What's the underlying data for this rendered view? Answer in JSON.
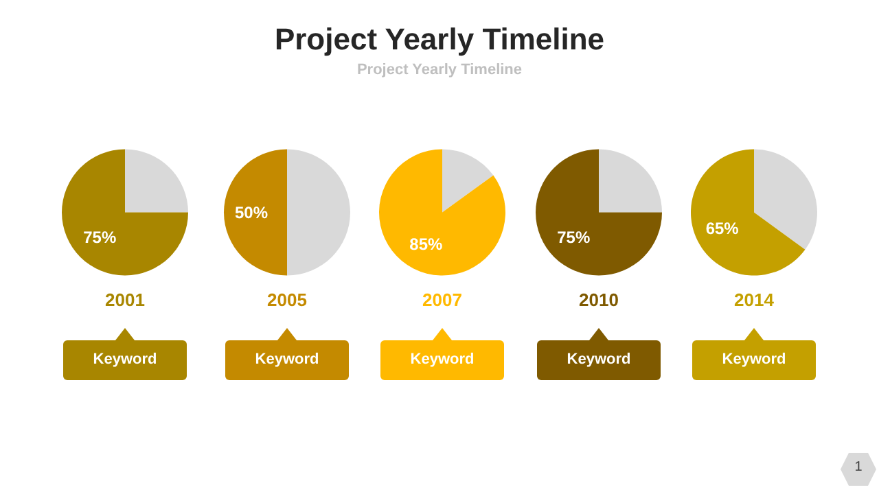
{
  "chart_data": [
    {
      "type": "other",
      "title": "Project Yearly Timeline",
      "subtitle": "Project Yearly Timeline",
      "annotations": [
        "1"
      ]
    },
    {
      "type": "pie",
      "xlabel": "2001",
      "categories": [
        null,
        null
      ],
      "values": [
        25,
        75
      ],
      "colors": [
        "#d9d9d9",
        "#a88600"
      ],
      "value_labels": [
        null,
        "75%"
      ],
      "annotations": [
        "Keyword"
      ]
    },
    {
      "type": "pie",
      "xlabel": "2005",
      "categories": [
        null,
        null
      ],
      "values": [
        50,
        50
      ],
      "colors": [
        "#d9d9d9",
        "#c48a00"
      ],
      "value_labels": [
        null,
        "50%"
      ],
      "annotations": [
        "Keyword"
      ]
    },
    {
      "type": "pie",
      "xlabel": "2007",
      "categories": [
        null,
        null
      ],
      "values": [
        15,
        85
      ],
      "colors": [
        "#d9d9d9",
        "#ffb900"
      ],
      "value_labels": [
        null,
        "85%"
      ],
      "annotations": [
        "Keyword"
      ]
    },
    {
      "type": "pie",
      "xlabel": "2010",
      "categories": [
        null,
        null
      ],
      "values": [
        25,
        75
      ],
      "colors": [
        "#d9d9d9",
        "#7f5a00"
      ],
      "value_labels": [
        null,
        "75%"
      ],
      "annotations": [
        "Keyword"
      ]
    },
    {
      "type": "pie",
      "xlabel": "2014",
      "categories": [
        null,
        null
      ],
      "values": [
        35,
        65
      ],
      "colors": [
        "#d9d9d9",
        "#c4a000"
      ],
      "value_labels": [
        null,
        "65%"
      ],
      "annotations": [
        "Keyword"
      ]
    }
  ]
}
